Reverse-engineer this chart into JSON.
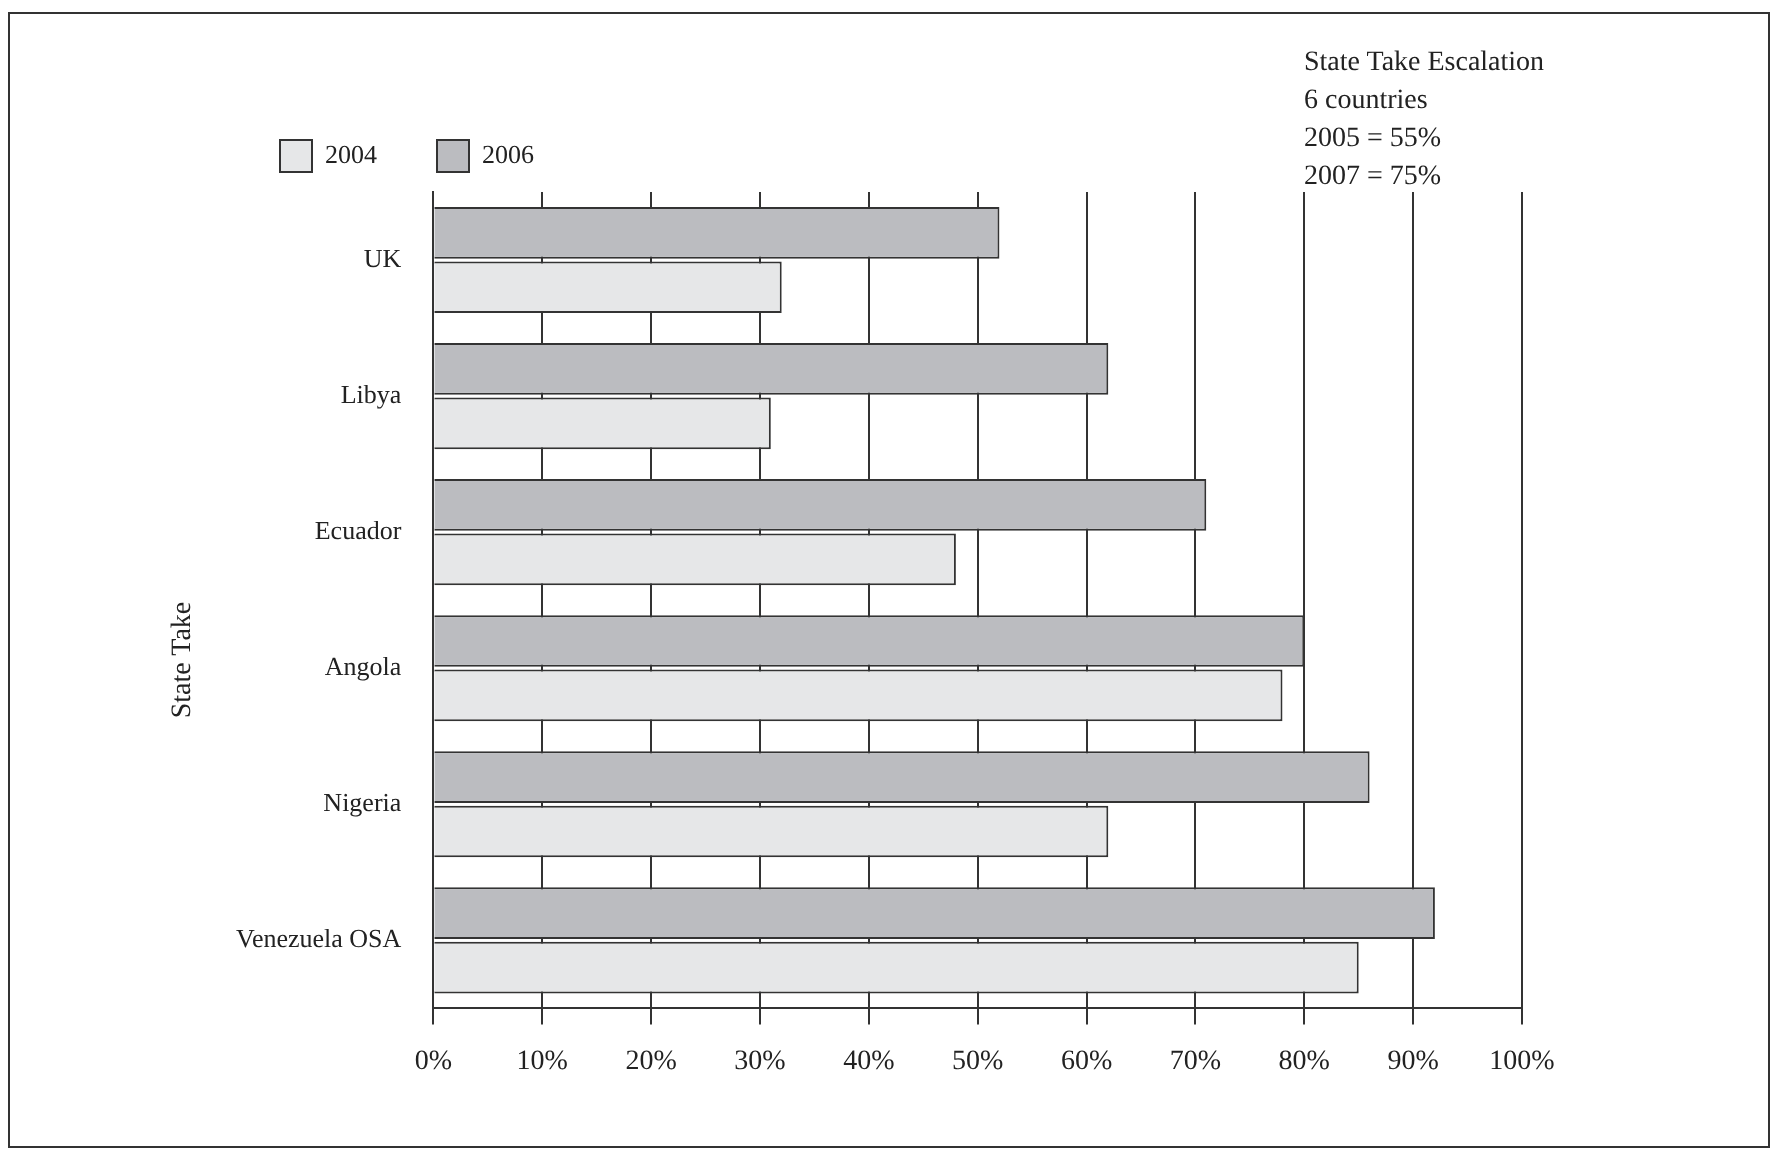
{
  "chart_data": {
    "type": "bar",
    "orientation": "horizontal",
    "ylabel": "State Take",
    "categories": [
      "UK",
      "Libya",
      "Ecuador",
      "Angola",
      "Nigeria",
      "Venezuela OSA"
    ],
    "series": [
      {
        "name": "2004",
        "color": "#e6e7e8",
        "values": [
          32,
          31,
          48,
          78,
          62,
          85
        ]
      },
      {
        "name": "2006",
        "color": "#bbbcc0",
        "values": [
          52,
          62,
          71,
          80,
          86,
          92
        ]
      }
    ],
    "xlim": [
      0,
      100
    ],
    "xticks": [
      {
        "value": 0,
        "label": "0%"
      },
      {
        "value": 10,
        "label": "10%"
      },
      {
        "value": 20,
        "label": "20%"
      },
      {
        "value": 30,
        "label": "30%"
      },
      {
        "value": 40,
        "label": "40%"
      },
      {
        "value": 50,
        "label": "50%"
      },
      {
        "value": 60,
        "label": "60%"
      },
      {
        "value": 70,
        "label": "70%"
      },
      {
        "value": 80,
        "label": "80%"
      },
      {
        "value": 90,
        "label": "90%"
      },
      {
        "value": 100,
        "label": "100%"
      }
    ],
    "grid": "x",
    "legend": "top left",
    "annotations": [
      "State Take Escalation",
      "6 countries",
      "2005 = 55%",
      "2007 = 75%"
    ]
  }
}
